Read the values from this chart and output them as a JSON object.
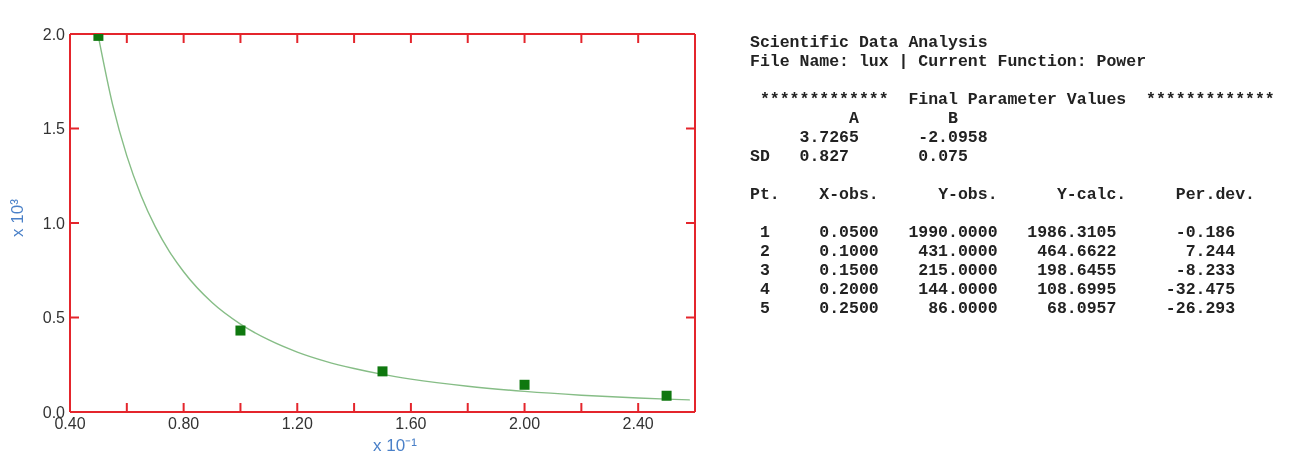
{
  "chart_data": [
    {
      "type": "scatter",
      "xlabel": "x 10⁻¹",
      "ylabel": "x 10³",
      "x": [
        0.5,
        1,
        1.5,
        2,
        2.5
      ],
      "series": [
        {
          "type": "scatter",
          "color": "#0f780f",
          "marker": "square",
          "values": [
            1.99,
            0.431,
            0.215,
            0.144,
            0.086
          ]
        },
        {
          "type": "line",
          "color": "#86bd86",
          "marker": "none",
          "line_style": "solid",
          "x": [
            0.5,
            0.55,
            0.6,
            0.65,
            0.7,
            0.75,
            0.8,
            0.9,
            1,
            1.1,
            1.2,
            1.3,
            1.4,
            1.5,
            1.6,
            1.8,
            2,
            2.2,
            2.4,
            2.5,
            2.58
          ],
          "values": [
            1.986,
            1.626,
            1.355,
            1.146,
            0.981,
            0.849,
            0.742,
            0.579,
            0.465,
            0.381,
            0.317,
            0.268,
            0.23,
            0.199,
            0.174,
            0.136,
            0.109,
            0.089,
            0.074,
            0.068,
            0.064
          ]
        }
      ],
      "xlim": [
        0.4,
        2.6
      ],
      "ylim": [
        0,
        2
      ],
      "xticks": [
        {
          "value": 0.4,
          "label": "0.40"
        },
        {
          "value": 0.6,
          "label": null
        },
        {
          "value": 0.8,
          "label": "0.80"
        },
        {
          "value": 1,
          "label": null
        },
        {
          "value": 1.2,
          "label": "1.20"
        },
        {
          "value": 1.4,
          "label": null
        },
        {
          "value": 1.6,
          "label": "1.60"
        },
        {
          "value": 1.8,
          "label": null
        },
        {
          "value": 2,
          "label": "2.00"
        },
        {
          "value": 2.2,
          "label": null
        },
        {
          "value": 2.4,
          "label": "2.40"
        }
      ],
      "yticks": [
        {
          "value": 0,
          "label": "0.0"
        },
        0.5,
        {
          "value": 1,
          "label": "1.0"
        },
        1.5,
        {
          "value": 2,
          "label": "2.0"
        }
      ]
    },
    {
      "type": "other",
      "title": "Scientific Data Analysis",
      "subtitle": "File Name: lux | Current Function: Power",
      "annotations": [
        " *************  Final Parameter Values  *************",
        "          A         B",
        "     3.7265      -2.0958",
        "SD   0.827       0.075",
        "Pt.    X-obs.      Y-obs.      Y-calc.     Per.dev.",
        " 1     0.0500   1990.0000   1986.3105      -0.186",
        " 2     0.1000    431.0000    464.6622       7.244",
        " 3     0.1500    215.0000    198.6455      -8.233",
        " 4     0.2000    144.0000    108.6995     -32.475",
        " 5     0.2500     86.0000     68.0957     -26.293"
      ]
    }
  ]
}
